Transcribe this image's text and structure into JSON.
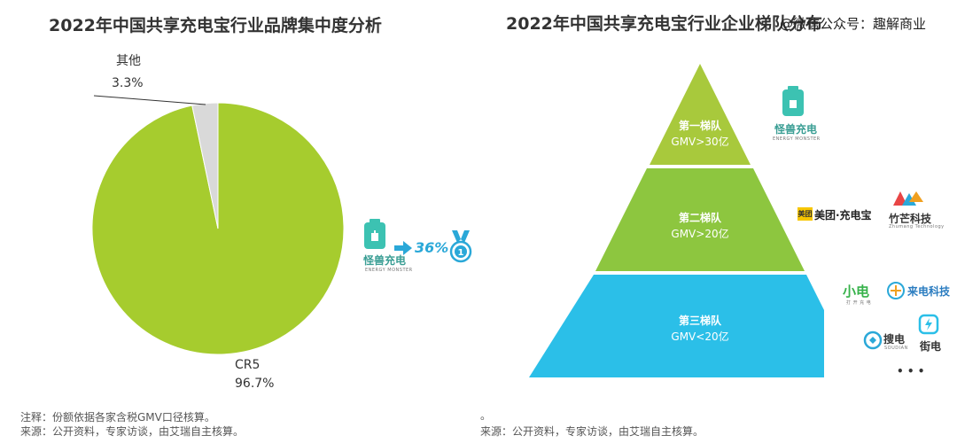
{
  "left": {
    "title": "2022年中国共享充电宝行业品牌集中度分析",
    "notes": [
      "注释：份额依据各家含税GMV口径核算。",
      "来源：公开资料，专家访谈，由艾瑞自主核算。"
    ],
    "callout": {
      "brand": "怪兽充电",
      "brand_sub": "ENERGY MONSTER",
      "share": "36%",
      "medal_number": "1"
    }
  },
  "right": {
    "title": "2022年中国共享充电宝行业企业梯队分布",
    "watermark": "@微信公众号：趣解商业",
    "dot": "。",
    "notes": [
      "来源：公开资料，专家访谈，由艾瑞自主核算。"
    ],
    "tiers": [
      {
        "name": "第一梯队",
        "gmv": "GMV>30亿",
        "color": "#a8c93c"
      },
      {
        "name": "第二梯队",
        "gmv": "GMV>20亿",
        "color": "#8dc63f"
      },
      {
        "name": "第三梯队",
        "gmv": "GMV<20亿",
        "color": "#2bbfe8"
      }
    ],
    "brands": {
      "energy_monster": {
        "name": "怪兽充电",
        "sub": "ENERGY MONSTER"
      },
      "meituan": {
        "badge": "美团",
        "name": "美团·充电宝"
      },
      "zhumang": {
        "name": "竹芒科技",
        "sub": "Zhumang Technology"
      },
      "xiaodian": {
        "name": "小电",
        "sub": "打 开 充 电"
      },
      "laidian": {
        "name": "来电科技"
      },
      "soudian": {
        "name": "搜电",
        "sub": "SOUDIAN"
      },
      "jiedian": {
        "name": "街电"
      },
      "more": "• • •"
    }
  },
  "colors": {
    "main": "#a6cc2e",
    "other": "#d9d9d9",
    "teal": "#3cc2b2",
    "share": "#2aa8d8"
  },
  "chart_data": {
    "type": "pie",
    "title": "2022年中国共享充电宝行业品牌集中度分析",
    "slices": [
      {
        "label": "CR5",
        "value": 96.7,
        "display": "96.7%"
      },
      {
        "label": "其他",
        "value": 3.3,
        "display": "3.3%"
      }
    ]
  }
}
